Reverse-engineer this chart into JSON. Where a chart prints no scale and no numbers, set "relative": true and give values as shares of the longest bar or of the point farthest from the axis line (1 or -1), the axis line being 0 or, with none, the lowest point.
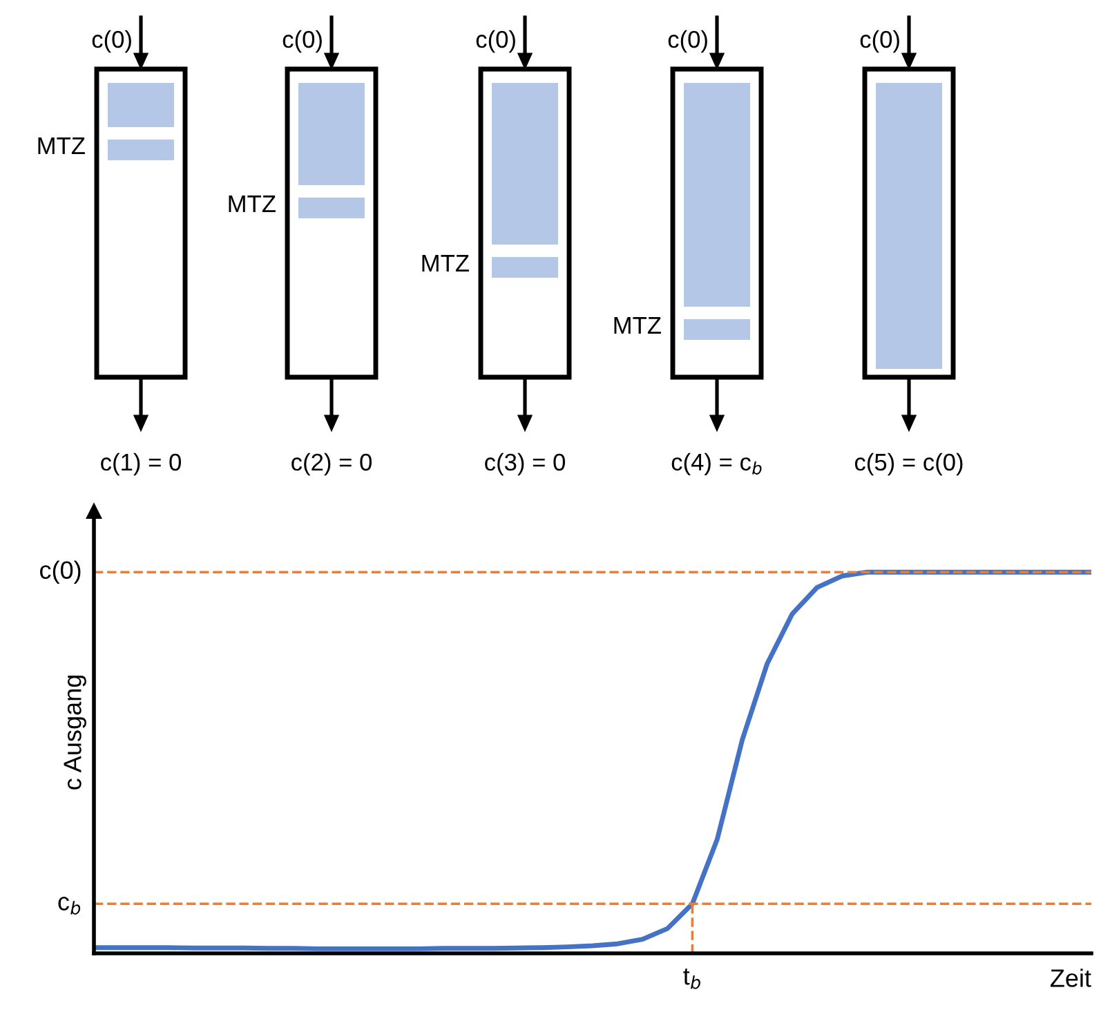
{
  "chart_data": {
    "type": "line",
    "xlabel": "Zeit",
    "ylabel": "c Ausgang",
    "categories": [
      null,
      null,
      null,
      null,
      null,
      null,
      null,
      null,
      null,
      null,
      null,
      null,
      null,
      null,
      null,
      null,
      null,
      null,
      null,
      null,
      null,
      null,
      null,
      null,
      null,
      null,
      null,
      null,
      null,
      null,
      null,
      null,
      null,
      null,
      null,
      null,
      null,
      null,
      null,
      null,
      null
    ],
    "relative": true,
    "series": [
      {
        "color": "#4472c4",
        "values": [
          0.015,
          0.015,
          0.015,
          0.015,
          0.014,
          0.014,
          0.014,
          0.013,
          0.013,
          0.012,
          0.012,
          0.012,
          0.012,
          0.012,
          0.013,
          0.013,
          0.013,
          0.014,
          0.015,
          0.017,
          0.02,
          0.025,
          0.037,
          0.065,
          0.13,
          0.3,
          0.56,
          0.76,
          0.89,
          0.96,
          0.99,
          1.0,
          1.0,
          1.0,
          1.0,
          1.0,
          1.0,
          1.0,
          1.0,
          1.0,
          1.0
        ]
      }
    ],
    "ref_lines": [
      {
        "axis": "y",
        "value": 1,
        "label": "c(0)",
        "color": "#ed7d31",
        "line_style": "dashed"
      },
      {
        "axis": "y",
        "value": 0.13,
        "label": "c$_{b}$",
        "color": "#ed7d31",
        "line_style": "dashed"
      }
    ],
    "annotations": [
      "c(0)",
      "c(0)",
      "c(0)",
      "c(0)",
      "c(0)",
      "MTZ",
      "MTZ",
      "MTZ",
      "MTZ",
      "c(1) = 0",
      "c(2) = 0",
      "c(3) = 0",
      "c(4) = c$_{b}$",
      "c(5) = c(0)",
      "t$_{b}$"
    ]
  }
}
